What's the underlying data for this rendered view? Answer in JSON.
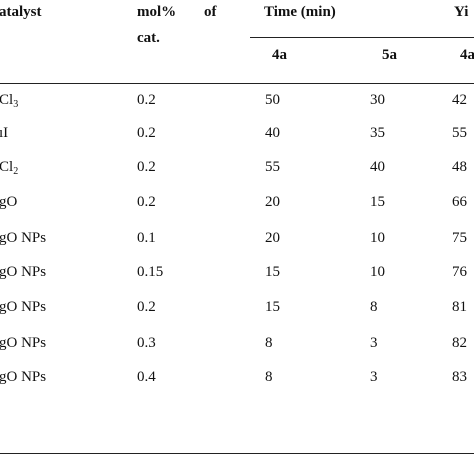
{
  "header": {
    "catalyst": "atalyst",
    "mol_line1": "mol%",
    "mol_of": "of",
    "mol_line2": "cat.",
    "time": "Time (min)",
    "yield": "Yi",
    "sub_4a": "4a",
    "sub_5a": "5a",
    "sub_4a_yield": "4a"
  },
  "rows": [
    {
      "cat": "Cl",
      "cat_sub": "3",
      "mol": "0.2",
      "t4a": "50",
      "t5a": "30",
      "y4a": "42"
    },
    {
      "cat": "ıI",
      "cat_sub": "",
      "mol": "0.2",
      "t4a": "40",
      "t5a": "35",
      "y4a": "55"
    },
    {
      "cat": "Cl",
      "cat_sub": "2",
      "mol": "0.2",
      "t4a": "55",
      "t5a": "40",
      "y4a": "48"
    },
    {
      "cat": "gO",
      "cat_sub": "",
      "mol": "0.2",
      "t4a": "20",
      "t5a": "15",
      "y4a": "66"
    },
    {
      "cat": "gO NPs",
      "cat_sub": "",
      "mol": "0.1",
      "t4a": "20",
      "t5a": "10",
      "y4a": "75"
    },
    {
      "cat": "gO NPs",
      "cat_sub": "",
      "mol": "0.15",
      "t4a": "15",
      "t5a": "10",
      "y4a": "76"
    },
    {
      "cat": "gO NPs",
      "cat_sub": "",
      "mol": "0.2",
      "t4a": "15",
      "t5a": "8",
      "y4a": "81"
    },
    {
      "cat": "gO NPs",
      "cat_sub": "",
      "mol": "0.3",
      "t4a": "8",
      "t5a": "3",
      "y4a": "82"
    },
    {
      "cat": "gO NPs",
      "cat_sub": "",
      "mol": "0.4",
      "t4a": "8",
      "t5a": "3",
      "y4a": "83"
    }
  ]
}
